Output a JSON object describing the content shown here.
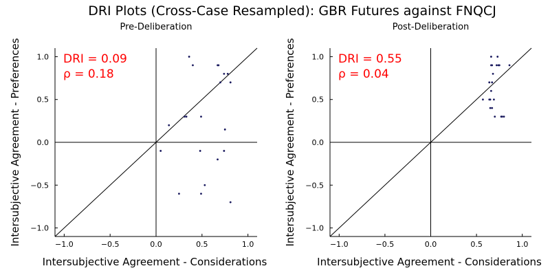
{
  "figure": {
    "title": "DRI Plots (Cross-Case Resampled): GBR Futures against FNQCJ",
    "colors": {
      "points": "#1a1a5e",
      "annotation": "#ff0000",
      "axes": "#000000"
    }
  },
  "chart_data": [
    {
      "type": "scatter",
      "title": "Pre-Deliberation",
      "xlabel": "Intersubjective Agreement - Considerations",
      "ylabel": "Intersubjective Agreement - Preferences",
      "xlim": [
        -1.1,
        1.1
      ],
      "ylim": [
        -1.1,
        1.1
      ],
      "xticks": [
        -1.0,
        -0.5,
        0.0,
        0.5,
        1.0
      ],
      "yticks": [
        -1.0,
        -0.5,
        0.0,
        0.5,
        1.0
      ],
      "xtick_labels": [
        "−1.0",
        "−0.5",
        "0.0",
        "0.5",
        "1.0"
      ],
      "ytick_labels": [
        "−1.0",
        "−0.5",
        "0.0",
        "0.5",
        "1.0"
      ],
      "grid": false,
      "reference_lines": [
        "y = x",
        "x = 0",
        "y = 0"
      ],
      "annotations": [
        "DRI = 0.09",
        "ρ = 0.18"
      ],
      "points": [
        {
          "x": 0.36,
          "y": 1.0
        },
        {
          "x": 0.4,
          "y": 0.9
        },
        {
          "x": 0.67,
          "y": 0.9
        },
        {
          "x": 0.68,
          "y": 0.9
        },
        {
          "x": 0.74,
          "y": 0.8
        },
        {
          "x": 0.78,
          "y": 0.8
        },
        {
          "x": 0.7,
          "y": 0.7
        },
        {
          "x": 0.81,
          "y": 0.7
        },
        {
          "x": 0.31,
          "y": 0.3
        },
        {
          "x": 0.33,
          "y": 0.3
        },
        {
          "x": 0.49,
          "y": 0.3
        },
        {
          "x": 0.14,
          "y": 0.2
        },
        {
          "x": 0.75,
          "y": 0.15
        },
        {
          "x": 0.05,
          "y": -0.1
        },
        {
          "x": 0.48,
          "y": -0.1
        },
        {
          "x": 0.74,
          "y": -0.1
        },
        {
          "x": 0.67,
          "y": -0.2
        },
        {
          "x": 0.53,
          "y": -0.5
        },
        {
          "x": 0.25,
          "y": -0.6
        },
        {
          "x": 0.49,
          "y": -0.6
        },
        {
          "x": 0.81,
          "y": -0.7
        }
      ]
    },
    {
      "type": "scatter",
      "title": "Post-Deliberation",
      "xlabel": "Intersubjective Agreement - Considerations",
      "ylabel": "Intersubjective Agreement - Preferences",
      "xlim": [
        -1.1,
        1.1
      ],
      "ylim": [
        -1.1,
        1.1
      ],
      "xticks": [
        -1.0,
        -0.5,
        0.0,
        0.5,
        1.0
      ],
      "yticks": [
        -1.0,
        -0.5,
        0.0,
        0.5,
        1.0
      ],
      "xtick_labels": [
        "−1.0",
        "−0.5",
        "0.0",
        "0.5",
        "1.0"
      ],
      "ytick_labels": [
        "−1.0",
        "−0.5",
        "0.0",
        "0.5",
        "1.0"
      ],
      "grid": false,
      "reference_lines": [
        "y = x",
        "x = 0",
        "y = 0"
      ],
      "annotations": [
        "DRI = 0.55",
        "ρ = 0.04"
      ],
      "points": [
        {
          "x": 0.66,
          "y": 1.0
        },
        {
          "x": 0.73,
          "y": 1.0
        },
        {
          "x": 0.66,
          "y": 0.9
        },
        {
          "x": 0.67,
          "y": 0.9
        },
        {
          "x": 0.72,
          "y": 0.9
        },
        {
          "x": 0.74,
          "y": 0.9
        },
        {
          "x": 0.75,
          "y": 0.9
        },
        {
          "x": 0.86,
          "y": 0.9
        },
        {
          "x": 0.68,
          "y": 0.8
        },
        {
          "x": 0.64,
          "y": 0.7
        },
        {
          "x": 0.67,
          "y": 0.7
        },
        {
          "x": 0.66,
          "y": 0.6
        },
        {
          "x": 0.57,
          "y": 0.5
        },
        {
          "x": 0.64,
          "y": 0.5
        },
        {
          "x": 0.65,
          "y": 0.5
        },
        {
          "x": 0.69,
          "y": 0.5
        },
        {
          "x": 0.65,
          "y": 0.4
        },
        {
          "x": 0.67,
          "y": 0.4
        },
        {
          "x": 0.7,
          "y": 0.3
        },
        {
          "x": 0.77,
          "y": 0.3
        },
        {
          "x": 0.78,
          "y": 0.3
        },
        {
          "x": 0.8,
          "y": 0.3
        }
      ]
    }
  ]
}
